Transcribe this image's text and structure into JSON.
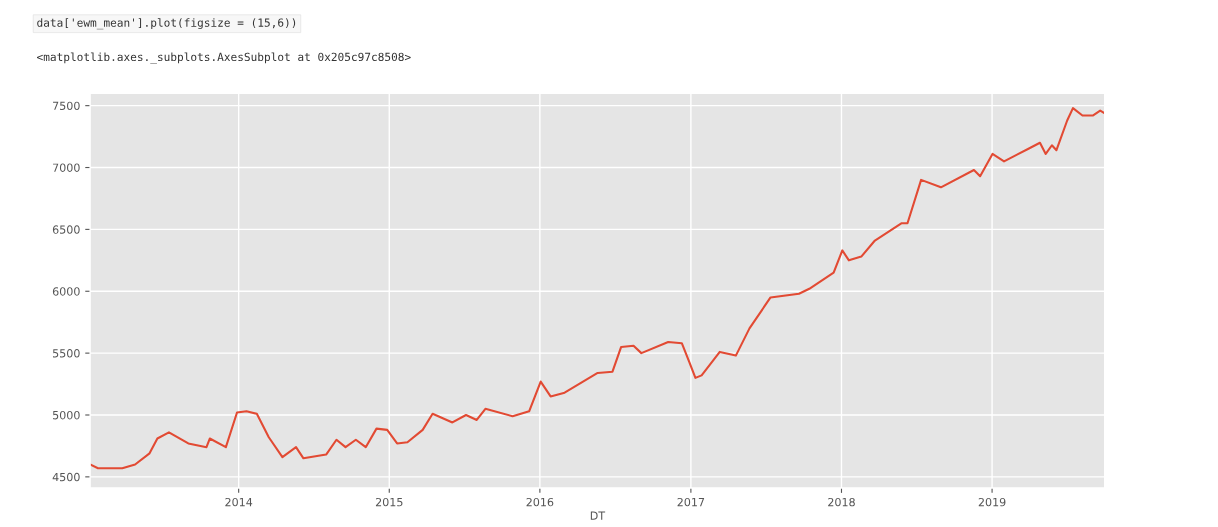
{
  "chart_data": {
    "type": "line",
    "xlabel": "DT",
    "annotations": [
      "data['ewm_mean'].plot(figsize = (15,6))",
      "<matplotlib.axes._subplots.AxesSubplot at 0x205c97c8508>"
    ],
    "x": [
      "2013-01-06",
      "2013-01-25",
      "2013-03-25",
      "2013-04-25",
      "2013-05-30",
      "2013-06-18",
      "2013-07-16",
      "2013-09-01",
      "2013-10-15",
      "2013-10-23",
      "2013-12-01",
      "2013-12-28",
      "2014-01-20",
      "2014-02-14",
      "2014-03-15",
      "2014-04-17",
      "2014-05-20",
      "2014-06-07",
      "2014-08-01",
      "2014-08-26",
      "2014-09-17",
      "2014-10-12",
      "2014-11-05",
      "2014-12-01",
      "2014-12-27",
      "2015-01-20",
      "2015-02-14",
      "2015-03-23",
      "2015-04-16",
      "2015-06-03",
      "2015-07-06",
      "2015-08-01",
      "2015-08-22",
      "2015-10-27",
      "2015-12-06",
      "2016-01-03",
      "2016-01-27",
      "2016-03-01",
      "2016-05-20",
      "2016-06-25",
      "2016-07-16",
      "2016-08-15",
      "2016-09-03",
      "2016-11-07",
      "2016-12-10",
      "2016-12-28",
      "2017-01-12",
      "2017-01-27",
      "2017-03-12",
      "2017-04-20",
      "2017-05-23",
      "2017-07-13",
      "2017-09-20",
      "2017-10-15",
      "2017-12-13",
      "2018-01-03",
      "2018-01-19",
      "2018-02-18",
      "2018-03-23",
      "2018-05-27",
      "2018-06-10",
      "2018-07-13",
      "2018-08-30",
      "2018-11-18",
      "2018-12-03",
      "2019-01-02",
      "2019-01-30",
      "2019-03-29",
      "2019-04-27",
      "2019-05-11",
      "2019-05-26",
      "2019-06-06",
      "2019-07-02",
      "2019-07-16",
      "2019-08-08",
      "2019-09-02",
      "2019-09-20",
      "2019-09-30"
    ],
    "series": [
      {
        "color": "#e24a33",
        "values": [
          4600,
          4570,
          4570,
          4600,
          4690,
          4810,
          4860,
          4770,
          4740,
          4810,
          4740,
          5020,
          5030,
          5010,
          4820,
          4660,
          4740,
          4650,
          4680,
          4800,
          4740,
          4800,
          4740,
          4890,
          4880,
          4770,
          4780,
          4880,
          5010,
          4940,
          5000,
          4960,
          5050,
          4990,
          5030,
          5270,
          5150,
          5180,
          5340,
          5350,
          5550,
          5560,
          5500,
          5590,
          5580,
          5430,
          5300,
          5320,
          5510,
          5480,
          5700,
          5950,
          5980,
          6020,
          6150,
          6330,
          6250,
          6280,
          6410,
          6550,
          6550,
          6900,
          6840,
          6980,
          6930,
          7110,
          7050,
          7150,
          7200,
          7110,
          7180,
          7140,
          7380,
          7480,
          7420,
          7420,
          7460,
          7440
        ]
      }
    ],
    "xlim": [
      "2013-01-06",
      "2019-10-01"
    ],
    "xticks": [
      {
        "value": "2014-01-01",
        "label": "2014"
      },
      {
        "value": "2015-01-01",
        "label": "2015"
      },
      {
        "value": "2016-01-01",
        "label": "2016"
      },
      {
        "value": "2017-01-01",
        "label": "2017"
      },
      {
        "value": "2018-01-01",
        "label": "2018"
      },
      {
        "value": "2019-01-01",
        "label": "2019"
      }
    ],
    "ylim": [
      4410,
      7600
    ],
    "yticks": [
      4500,
      5000,
      5500,
      6000,
      6500,
      7000,
      7500
    ],
    "grid": true,
    "marker": "none",
    "line_style": "solid"
  }
}
